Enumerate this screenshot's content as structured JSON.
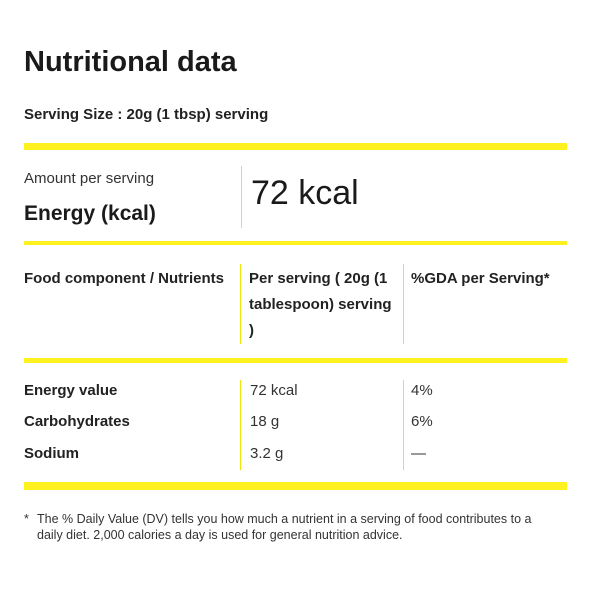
{
  "title": "Nutritional data",
  "serving_size": "Serving Size : 20g (1 tbsp) serving",
  "energy_block": {
    "amount_label": "Amount per serving",
    "energy_label": "Energy (kcal)",
    "energy_value": "72 kcal"
  },
  "table": {
    "headers": [
      "Food component / Nutrients",
      "Per serving ( 20g (1 tablespoon) serving )",
      "%GDA per Serving*"
    ],
    "rows": [
      {
        "component": "Energy value",
        "per_serving": "72 kcal",
        "gda": "4%"
      },
      {
        "component": "Carbohydrates",
        "per_serving": "18 g",
        "gda": "6%"
      },
      {
        "component": "Sodium",
        "per_serving": "3.2 g",
        "gda": "—"
      }
    ]
  },
  "footnote": {
    "mark": "*",
    "text": "The % Daily Value (DV) tells you how much a nutrient in a serving of food contributes to a daily diet. 2,000 calories a day is used for general nutrition advice."
  },
  "colors": {
    "accent_bar": "#fff01f",
    "text": "#1a1a1a"
  }
}
